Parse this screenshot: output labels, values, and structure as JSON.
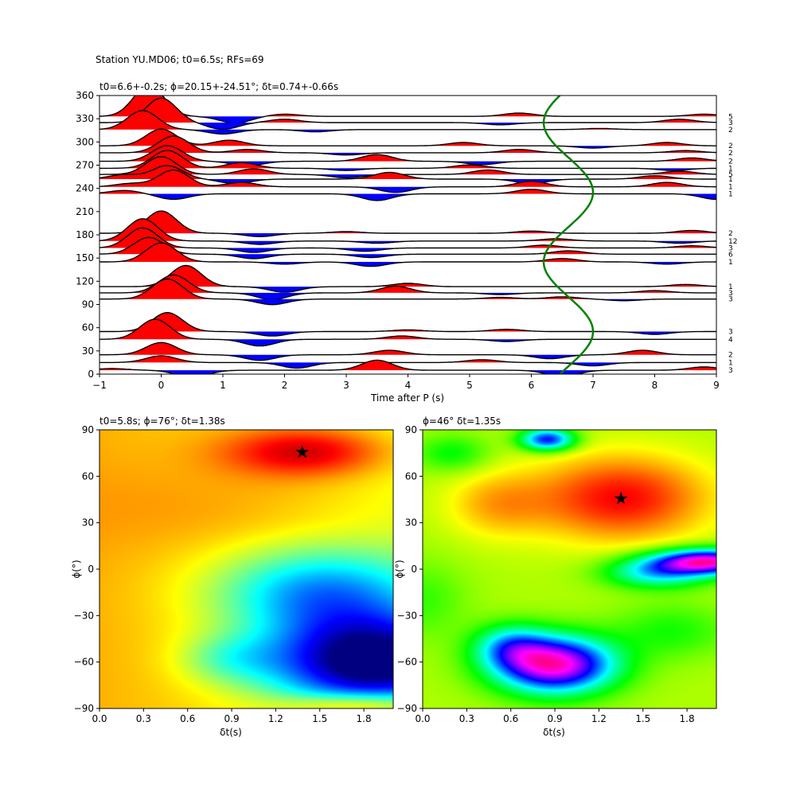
{
  "figure": {
    "suptitle": "Station YU.MD06; t0=6.5s; RFs=69"
  },
  "chart_data": [
    {
      "type": "line",
      "title": "t0=6.6+-0.2s; ϕ=20.15+-24.51°; δt=0.74+-0.66s",
      "xlabel": "Time after P (s)",
      "ylabel": "",
      "xlim": [
        -1,
        9
      ],
      "ylim": [
        0,
        360
      ],
      "xticks": [
        -1,
        0,
        1,
        2,
        3,
        4,
        5,
        6,
        7,
        8,
        9
      ],
      "yticks": [
        0,
        30,
        60,
        90,
        120,
        150,
        180,
        210,
        240,
        270,
        300,
        330,
        360
      ],
      "positive_fill_color": "#ff0000",
      "negative_fill_color": "#0000ff",
      "trace_color": "#000000",
      "curve_color": "#008000",
      "traces": [
        {
          "baz": 5,
          "count": "3",
          "peaks": [
            [
              -0.8,
              0.15
            ],
            [
              0.5,
              -0.7
            ],
            [
              3.5,
              0.9
            ],
            [
              6.5,
              -0.6
            ],
            [
              8.8,
              0.3
            ]
          ]
        },
        {
          "baz": 15,
          "count": "1",
          "peaks": [
            [
              0.0,
              0.6
            ],
            [
              2.2,
              -0.5
            ],
            [
              5.2,
              0.25
            ],
            [
              7.0,
              -0.3
            ]
          ]
        },
        {
          "baz": 25,
          "count": "2",
          "peaks": [
            [
              0.0,
              1.1
            ],
            [
              1.6,
              -0.5
            ],
            [
              3.7,
              0.4
            ],
            [
              6.3,
              -0.35
            ],
            [
              7.8,
              0.4
            ]
          ]
        },
        {
          "baz": 45,
          "count": "4",
          "peaks": [
            [
              -0.1,
              1.8
            ],
            [
              1.6,
              -0.6
            ],
            [
              3.9,
              0.3
            ],
            [
              5.6,
              -0.2
            ]
          ]
        },
        {
          "baz": 55,
          "count": "3",
          "peaks": [
            [
              0.1,
              1.7
            ],
            [
              1.8,
              -0.4
            ],
            [
              4.0,
              0.15
            ],
            [
              5.6,
              0.2
            ],
            [
              8.0,
              -0.25
            ]
          ]
        },
        {
          "baz": 97,
          "count": "3",
          "peaks": [
            [
              0.1,
              1.8
            ],
            [
              1.8,
              -0.5
            ],
            [
              5.5,
              0.15
            ],
            [
              6.5,
              0.2
            ],
            [
              7.5,
              -0.15
            ]
          ]
        },
        {
          "baz": 105,
          "count": "3",
          "peaks": [
            [
              0.2,
              1.6
            ],
            [
              1.8,
              -0.6
            ],
            [
              3.8,
              0.6
            ],
            [
              5.5,
              -0.15
            ],
            [
              8.0,
              0.2
            ]
          ]
        },
        {
          "baz": 113,
          "count": "1",
          "peaks": [
            [
              0.4,
              1.9
            ],
            [
              2.0,
              -0.5
            ],
            [
              4.0,
              0.3
            ],
            [
              8.5,
              0.2
            ]
          ]
        },
        {
          "baz": 145,
          "count": "1",
          "peaks": [
            [
              0.0,
              1.7
            ],
            [
              2.0,
              -0.2
            ],
            [
              3.4,
              -0.4
            ],
            [
              6.5,
              0.3
            ],
            [
              8.2,
              -0.2
            ]
          ]
        },
        {
          "baz": 155,
          "count": "6",
          "peaks": [
            [
              -0.2,
              1.5
            ],
            [
              1.5,
              -0.4
            ],
            [
              3.4,
              -0.3
            ],
            [
              6.6,
              0.3
            ]
          ]
        },
        {
          "baz": 163,
          "count": "3",
          "peaks": [
            [
              -0.3,
              1.8
            ],
            [
              1.5,
              -0.4
            ],
            [
              3.3,
              -0.3
            ],
            [
              6.2,
              0.25
            ],
            [
              8.6,
              0.2
            ]
          ]
        },
        {
          "baz": 172,
          "count": "12",
          "peaks": [
            [
              -0.3,
              2.0
            ],
            [
              1.6,
              -0.3
            ],
            [
              3.5,
              -0.2
            ],
            [
              6.4,
              0.2
            ],
            [
              8.4,
              -0.2
            ]
          ]
        },
        {
          "baz": 182,
          "count": "2",
          "peaks": [
            [
              0.0,
              2.0
            ],
            [
              1.6,
              -0.3
            ],
            [
              3.0,
              0.15
            ],
            [
              6.0,
              0.2
            ],
            [
              8.6,
              0.25
            ]
          ]
        },
        {
          "baz": 233,
          "count": "1",
          "peaks": [
            [
              -0.6,
              0.3
            ],
            [
              0.2,
              -0.5
            ],
            [
              3.5,
              -0.6
            ],
            [
              6.0,
              0.4
            ],
            [
              9.0,
              -0.5
            ]
          ]
        },
        {
          "baz": 242,
          "count": "1",
          "peaks": [
            [
              -0.5,
              0.3
            ],
            [
              0.2,
              1.5
            ],
            [
              1.3,
              0.4
            ],
            [
              3.8,
              -0.5
            ],
            [
              6.0,
              0.5
            ],
            [
              8.2,
              0.4
            ]
          ]
        },
        {
          "baz": 252,
          "count": "1",
          "peaks": [
            [
              -0.6,
              0.4
            ],
            [
              0.1,
              1.2
            ],
            [
              1.2,
              -0.4
            ],
            [
              3.7,
              0.6
            ],
            [
              6.0,
              -0.4
            ],
            [
              8.0,
              0.3
            ]
          ]
        },
        {
          "baz": 258,
          "count": "5",
          "peaks": [
            [
              0.0,
              1.6
            ],
            [
              1.5,
              0.5
            ],
            [
              3.0,
              -0.3
            ],
            [
              5.3,
              0.4
            ],
            [
              8.4,
              0.3
            ]
          ]
        },
        {
          "baz": 266,
          "count": "1",
          "peaks": [
            [
              0.1,
              1.6
            ],
            [
              1.3,
              0.5
            ],
            [
              3.0,
              -0.2
            ],
            [
              5.0,
              0.3
            ],
            [
              8.3,
              -0.2
            ]
          ]
        },
        {
          "baz": 275,
          "count": "2",
          "peaks": [
            [
              0.1,
              1.4
            ],
            [
              1.4,
              -0.4
            ],
            [
              3.5,
              0.6
            ],
            [
              5.2,
              -0.3
            ],
            [
              8.6,
              0.3
            ]
          ]
        },
        {
          "baz": 286,
          "count": "2",
          "peaks": [
            [
              0.2,
              1.5
            ],
            [
              1.4,
              0.3
            ],
            [
              3.0,
              -0.2
            ],
            [
              5.8,
              0.3
            ],
            [
              8.5,
              0.2
            ]
          ]
        },
        {
          "baz": 295,
          "count": "2",
          "peaks": [
            [
              0.0,
              1.5
            ],
            [
              1.1,
              0.5
            ],
            [
              4.9,
              0.3
            ],
            [
              7.0,
              -0.2
            ],
            [
              8.2,
              0.3
            ]
          ]
        },
        {
          "baz": 316,
          "count": "2",
          "peaks": [
            [
              -0.3,
              1.7
            ],
            [
              1.0,
              -0.4
            ],
            [
              2.5,
              -0.2
            ],
            [
              7.1,
              0.1
            ]
          ]
        },
        {
          "baz": 325,
          "count": "3",
          "peaks": [
            [
              0.0,
              2.2
            ],
            [
              1.0,
              -0.6
            ],
            [
              2.0,
              0.3
            ],
            [
              5.5,
              -0.2
            ],
            [
              8.4,
              0.3
            ]
          ]
        },
        {
          "baz": 333,
          "count": "5",
          "peaks": [
            [
              -0.2,
              2.8
            ],
            [
              1.2,
              -0.6
            ],
            [
              2.0,
              0.2
            ],
            [
              5.8,
              0.3
            ],
            [
              8.8,
              0.2
            ]
          ]
        }
      ],
      "t0_curve": {
        "mean": 6.6,
        "amplitude": 0.4,
        "phase_deg": 20
      }
    },
    {
      "type": "heatmap",
      "title": "t0=5.8s; ϕ=76°; δt=1.38s",
      "xlabel": "δt(s)",
      "ylabel": "ϕ(°)",
      "xlim": [
        0,
        2
      ],
      "ylim": [
        -90,
        90
      ],
      "xticks": [
        "0.0",
        "0.3",
        "0.6",
        "0.9",
        "1.2",
        "1.5",
        "1.8"
      ],
      "yticks": [
        "90",
        "60",
        "30",
        "0",
        "−30",
        "−60",
        "−90"
      ],
      "colormap": "jet",
      "best": {
        "dt": 1.38,
        "phi": 76
      },
      "marker_color": "#000000"
    },
    {
      "type": "heatmap",
      "title": "ϕ=46° δt=1.35s",
      "xlabel": "δt(s)",
      "ylabel": "ϕ(°)",
      "xlim": [
        0,
        2
      ],
      "ylim": [
        -90,
        90
      ],
      "xticks": [
        "0.0",
        "0.3",
        "0.6",
        "0.9",
        "1.2",
        "1.5",
        "1.8"
      ],
      "yticks": [
        "90",
        "60",
        "30",
        "0",
        "−30",
        "−60",
        "−90"
      ],
      "colormap": "hsv",
      "best": {
        "dt": 1.35,
        "phi": 46
      },
      "marker_color": "#000000"
    }
  ]
}
